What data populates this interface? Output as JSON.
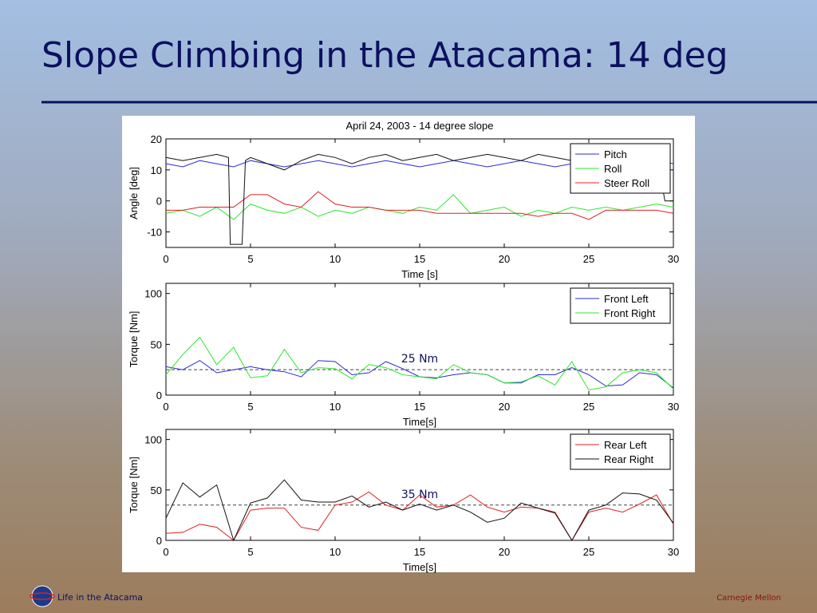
{
  "slide_title": "Slope Climbing in the Atacama: 14 deg",
  "footer_left": "Life in the Atacama",
  "footer_right": "Carnegie Mellon",
  "chart_data": [
    {
      "type": "line",
      "title": "April 24, 2003 - 14 degree slope",
      "xlabel": "Time [s]",
      "ylabel": "Angle [deg]",
      "xlim": [
        0,
        30
      ],
      "ylim": [
        -15,
        20
      ],
      "xticks": [
        0,
        5,
        10,
        15,
        20,
        25,
        30
      ],
      "yticks": [
        -10,
        0,
        10,
        20
      ],
      "legend": "upper right",
      "x": [
        0,
        1,
        2,
        3,
        4,
        5,
        6,
        7,
        8,
        9,
        10,
        11,
        12,
        13,
        14,
        15,
        16,
        17,
        18,
        19,
        20,
        21,
        22,
        23,
        24,
        25,
        26,
        27,
        28,
        29,
        30
      ],
      "series": [
        {
          "name": "Pitch",
          "color": "#2b2bd6",
          "values": [
            12,
            11,
            13,
            12,
            11,
            13,
            12,
            11,
            12,
            13,
            12,
            11,
            12,
            13,
            12,
            11,
            12,
            13,
            12,
            11,
            12,
            13,
            12,
            11,
            12,
            13,
            12,
            11,
            12,
            13,
            12
          ]
        },
        {
          "name": "Roll",
          "color": "#2ee62e",
          "values": [
            -4,
            -3,
            -5,
            -2,
            -6,
            -1,
            -3,
            -4,
            -2,
            -5,
            -3,
            -4,
            -2,
            -3,
            -4,
            -2,
            -3,
            2,
            -4,
            -3,
            -2,
            -5,
            -3,
            -4,
            -2,
            -3,
            -2,
            -3,
            -2,
            -1,
            -2
          ]
        },
        {
          "name": "Steer Roll",
          "color": "#e02020",
          "values": [
            -3,
            -3,
            -2,
            -2,
            -2,
            2,
            2,
            -1,
            -2,
            3,
            -1,
            -2,
            -2,
            -3,
            -3,
            -3,
            -4,
            -4,
            -4,
            -4,
            -4,
            -4,
            -5,
            -4,
            -4,
            -6,
            -3,
            -3,
            -3,
            -3,
            -4
          ]
        },
        {
          "color": "#111111",
          "x": [
            0,
            1,
            2,
            3,
            3.7,
            3.8,
            4.5,
            4.7,
            5,
            6,
            7,
            8,
            9,
            10,
            11,
            12,
            13,
            14,
            15,
            16,
            17,
            18,
            19,
            20,
            21,
            22,
            23,
            24,
            25,
            26,
            27,
            28,
            29,
            29.5,
            30
          ],
          "values": [
            14,
            13,
            14,
            15,
            14,
            -14,
            -14,
            13,
            14,
            12,
            10,
            13,
            15,
            14,
            12,
            14,
            15,
            13,
            14,
            15,
            13,
            14,
            15,
            14,
            13,
            15,
            14,
            13,
            15,
            14,
            14,
            13,
            15,
            0,
            0
          ]
        }
      ]
    },
    {
      "type": "line",
      "xlabel": "Time[s]",
      "ylabel": "Torque [Nm]",
      "xlim": [
        0,
        30
      ],
      "ylim": [
        0,
        110
      ],
      "xticks": [
        0,
        5,
        10,
        15,
        20,
        25,
        30
      ],
      "yticks": [
        0,
        50,
        100
      ],
      "legend": "upper right",
      "reference_lines": [
        {
          "value": 25,
          "label": "25 Nm",
          "x": 15
        }
      ],
      "x": [
        0,
        1,
        2,
        3,
        4,
        5,
        6,
        7,
        8,
        9,
        10,
        11,
        12,
        13,
        14,
        15,
        16,
        17,
        18,
        19,
        20,
        21,
        22,
        23,
        24,
        25,
        26,
        27,
        28,
        29,
        30
      ],
      "series": [
        {
          "name": "Front Left",
          "color": "#2b2bd6",
          "values": [
            28,
            25,
            34,
            22,
            25,
            28,
            25,
            23,
            18,
            34,
            33,
            20,
            22,
            33,
            26,
            18,
            17,
            20,
            22,
            20,
            12,
            12,
            20,
            20,
            27,
            20,
            9,
            10,
            22,
            20,
            7
          ]
        },
        {
          "name": "Front Right",
          "color": "#2ee62e",
          "values": [
            20,
            40,
            57,
            30,
            47,
            17,
            19,
            45,
            22,
            27,
            26,
            16,
            30,
            27,
            20,
            18,
            16,
            30,
            22,
            20,
            12,
            13,
            19,
            10,
            33,
            5,
            8,
            22,
            25,
            22,
            6
          ]
        }
      ]
    },
    {
      "type": "line",
      "xlabel": "Time[s]",
      "ylabel": "Torque [Nm]",
      "xlim": [
        0,
        30
      ],
      "ylim": [
        0,
        110
      ],
      "xticks": [
        0,
        5,
        10,
        15,
        20,
        25,
        30
      ],
      "yticks": [
        0,
        50,
        100
      ],
      "legend": "upper right",
      "reference_lines": [
        {
          "value": 35,
          "label": "35 Nm",
          "x": 15
        }
      ],
      "x": [
        0,
        1,
        2,
        3,
        4,
        5,
        6,
        7,
        8,
        9,
        10,
        11,
        12,
        13,
        14,
        15,
        16,
        17,
        18,
        19,
        20,
        21,
        22,
        23,
        24,
        25,
        26,
        27,
        28,
        29,
        30
      ],
      "series": [
        {
          "name": "Rear Left",
          "color": "#e02020",
          "values": [
            7,
            8,
            16,
            13,
            0,
            30,
            32,
            32,
            13,
            10,
            35,
            38,
            48,
            35,
            30,
            45,
            33,
            35,
            45,
            33,
            28,
            33,
            32,
            28,
            0,
            28,
            32,
            28,
            36,
            45,
            16
          ]
        },
        {
          "name": "Rear Right",
          "color": "#111111",
          "values": [
            22,
            57,
            43,
            55,
            0,
            37,
            42,
            60,
            40,
            38,
            38,
            44,
            33,
            38,
            30,
            36,
            30,
            35,
            28,
            18,
            22,
            37,
            32,
            27,
            0,
            30,
            35,
            47,
            46,
            40,
            17
          ]
        }
      ]
    }
  ]
}
